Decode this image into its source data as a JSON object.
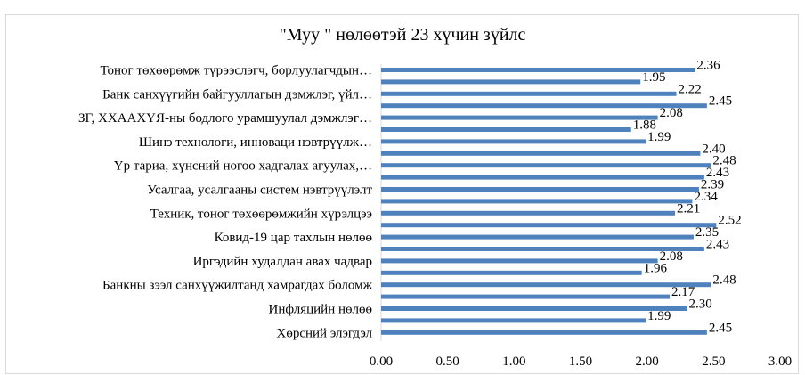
{
  "chart_data": {
    "type": "bar",
    "orientation": "horizontal",
    "title": "\"Муу \" нөлөөтэй 23 хүчин зүйлс",
    "xlabel": "",
    "ylabel": "",
    "xlim": [
      0,
      3
    ],
    "x_ticks": [
      "0.00",
      "0.50",
      "1.00",
      "1.50",
      "2.00",
      "2.50",
      "3.00"
    ],
    "grid": false,
    "bar_color": "#4f81bd",
    "categories": [
      "Тоног төхөөрөмж түрээслэгч, борлуулагчдын…",
      "",
      "Банк санхүүгийн байгууллагын дэмжлэг, үйл…",
      "",
      "ЗГ, ХХААХҮЯ-ны  бодлого урамшуулал  дэмжлэг…",
      "",
      "Шинэ технологи, инноваци нэвтрүүлж…",
      "",
      "Үр тариа, хүнсний ногоо хадгалах агуулах,…",
      "",
      "Усалгаа, усалгааны  систем нэвтрүүлэлт",
      "",
      "Техник,  тоног төхөөрөмжийн хүрэлцээ",
      "",
      "Ковид-19 цар тахлын нөлөө",
      "",
      "Иргэдийн худалдан авах чадвар",
      "",
      "Банкны зээл санхүүжилтанд хамрагдах боломж",
      "",
      "Инфляцийн нөлөө",
      "",
      "Хөрсний элэгдэл"
    ],
    "values": [
      2.36,
      1.95,
      2.22,
      2.45,
      2.08,
      1.88,
      1.99,
      2.4,
      2.48,
      2.43,
      2.39,
      2.34,
      2.21,
      2.52,
      2.35,
      2.43,
      2.08,
      1.96,
      2.48,
      2.17,
      2.3,
      1.99,
      2.45
    ],
    "value_labels": [
      "2.36",
      "1.95",
      "2.22",
      "2.45",
      "2.08",
      "1.88",
      "1.99",
      "2.40",
      "2.48",
      "2.43",
      "2.39",
      "2.34",
      "2.21",
      "2.52",
      "2.35",
      "2.43",
      "2.08",
      "1.96",
      "2.48",
      "2.17",
      "2.30",
      "1.99",
      "2.45"
    ]
  }
}
